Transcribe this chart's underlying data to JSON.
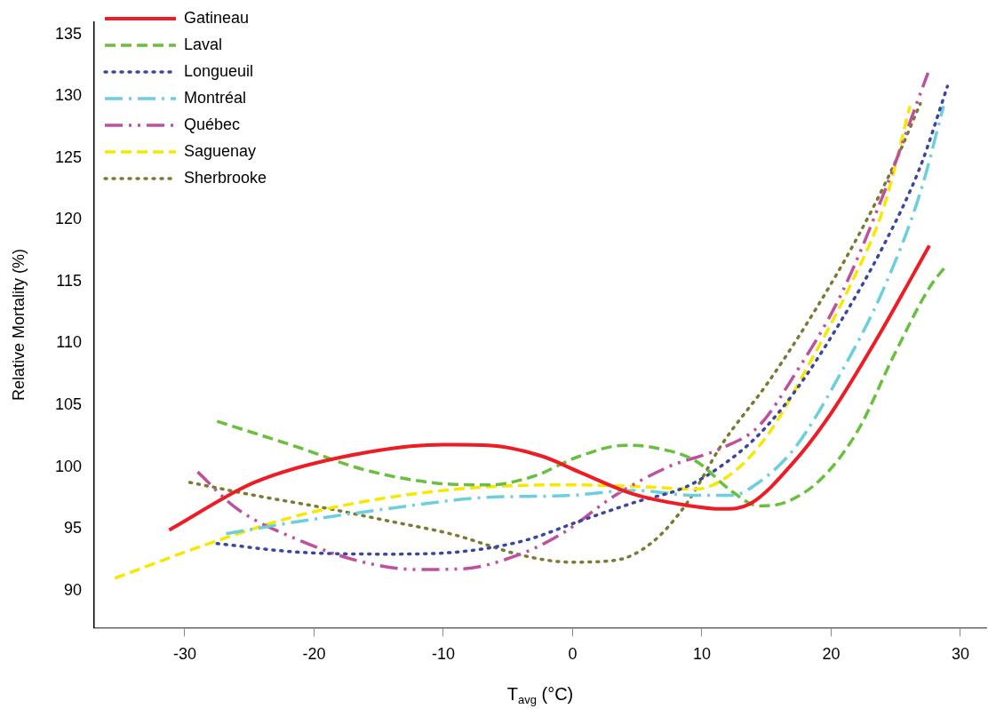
{
  "chart_data": {
    "type": "line",
    "xlabel": "T$_{avg}$ (°C)",
    "ylabel": "Relative Mortality (%)",
    "xlim": [
      -37,
      32
    ],
    "xticks": [
      -30,
      -20,
      -10,
      0,
      10,
      20,
      30
    ],
    "ylim": [
      87,
      136
    ],
    "yticks": [
      90,
      95,
      100,
      105,
      110,
      115,
      120,
      125,
      130,
      135
    ],
    "grid": false,
    "legend": "top left",
    "marker": "none",
    "series": [
      {
        "name": "Gatineau",
        "color": "#ee1c25",
        "line_style": "solid",
        "x": [
          -31.2,
          -24.6,
          -17.6,
          -10,
          -6.5,
          -2.3,
          0.5,
          4.7,
          8.8,
          11.6,
          13.7,
          17.2,
          20,
          23.5,
          27.6
        ],
        "values": [
          94.9,
          98.75,
          100.85,
          101.8,
          101.75,
          100.85,
          99.6,
          97.8,
          96.9,
          96.6,
          97,
          100.5,
          104.35,
          110.3,
          117.9
        ]
      },
      {
        "name": "Laval",
        "color": "#6abf3f",
        "line_style": "dashed",
        "x": [
          -27.5,
          -21.1,
          -16.2,
          -10.6,
          -6.5,
          -3,
          0.5,
          4,
          6.1,
          9.5,
          12.3,
          14.4,
          16.5,
          19.3,
          22.1,
          24.8,
          27.6,
          28.9
        ],
        "values": [
          103.7,
          101.55,
          99.8,
          98.7,
          98.55,
          99.25,
          100.85,
          101.75,
          101.6,
          100.5,
          98.05,
          96.85,
          97.15,
          99.1,
          103,
          108.9,
          114.5,
          116.3
        ]
      },
      {
        "name": "Longueuil",
        "color": "#3b46a0",
        "line_style": "dotted",
        "x": [
          -27.5,
          -21.1,
          -14.1,
          -8.6,
          -3.7,
          0.5,
          4.7,
          8.8,
          11.6,
          14.4,
          17.2,
          20.7,
          24.1,
          26.9,
          29
        ],
        "values": [
          93.8,
          93.1,
          92.95,
          93.15,
          94.05,
          95.6,
          97.1,
          98.4,
          100.15,
          102.6,
          106.1,
          111.7,
          118,
          124.3,
          130.8
        ]
      },
      {
        "name": "Montréal",
        "color": "#6ccfde",
        "line_style": "dashdot",
        "x": [
          -26.8,
          -21.1,
          -14.1,
          -7.2,
          -0.2,
          4.7,
          9.5,
          12.3,
          14.4,
          17.2,
          20.7,
          24.1,
          26.9,
          28.7
        ],
        "values": [
          94.6,
          95.6,
          96.65,
          97.5,
          97.7,
          98.1,
          97.7,
          97.7,
          98.75,
          101.55,
          107.5,
          114.5,
          122.2,
          129.2
        ]
      },
      {
        "name": "Québec",
        "color": "#bf509e",
        "line_style": "dashdotdot",
        "x": [
          -29,
          -26,
          -21.1,
          -16.2,
          -12,
          -8.6,
          -4.4,
          -0.9,
          3.3,
          7.4,
          11.6,
          14.4,
          17.2,
          20.7,
          24.1,
          26.9,
          27.5
        ],
        "values": [
          99.6,
          96.65,
          94.05,
          92.3,
          91.7,
          91.75,
          92.8,
          94.55,
          97.7,
          100,
          101.55,
          103.3,
          107.5,
          113.8,
          122.2,
          130.2,
          131.9
        ]
      },
      {
        "name": "Saguenay",
        "color": "#f8e800",
        "line_style": "dashed",
        "x": [
          -35.4,
          -28,
          -21.1,
          -14.1,
          -7.2,
          -0.2,
          5.4,
          9.5,
          12.3,
          15.1,
          18.6,
          21.4,
          24.1,
          26.1
        ],
        "values": [
          91,
          93.85,
          96.1,
          97.55,
          98.35,
          98.55,
          98.4,
          98.2,
          99.45,
          102.6,
          108.9,
          114.5,
          121.1,
          129.2
        ]
      },
      {
        "name": "Sherbrooke",
        "color": "#7a7a32",
        "line_style": "dotted",
        "x": [
          -29.6,
          -24.6,
          -19,
          -14.1,
          -9.3,
          -3.7,
          -0.2,
          3.3,
          6.1,
          8.8,
          11.6,
          15.1,
          18.6,
          22.1,
          24.8,
          26.9
        ],
        "values": [
          98.75,
          97.7,
          96.65,
          95.6,
          94.55,
          92.8,
          92.3,
          92.45,
          93.85,
          97,
          101.9,
          106.8,
          112.4,
          118.7,
          124.3,
          129.4
        ]
      }
    ]
  }
}
